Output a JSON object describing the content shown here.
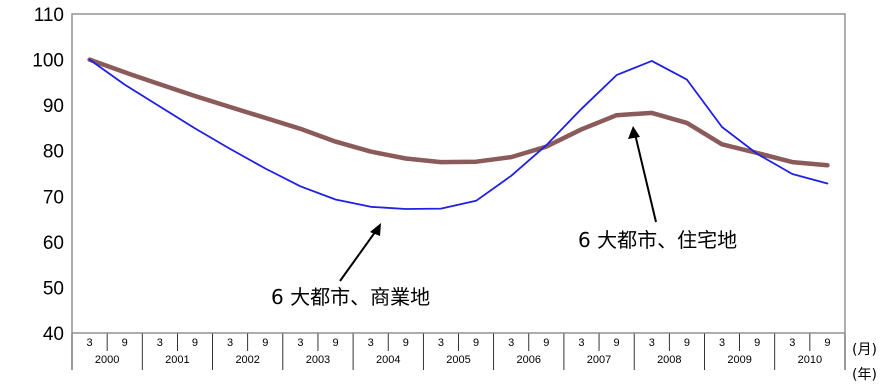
{
  "chart_data": {
    "type": "line",
    "ylim": [
      40,
      110
    ],
    "yticks": [
      "40",
      "50",
      "60",
      "70",
      "80",
      "90",
      "100",
      "110"
    ],
    "month_labels": [
      "3",
      "9"
    ],
    "years": [
      "2000",
      "2001",
      "2002",
      "2003",
      "2004",
      "2005",
      "2006",
      "2007",
      "2008",
      "2009",
      "2010"
    ],
    "unit_month": "(月)",
    "unit_year": "(年)",
    "grid": false,
    "x": [
      "2000-03",
      "2000-09",
      "2001-03",
      "2001-09",
      "2002-03",
      "2002-09",
      "2003-03",
      "2003-09",
      "2004-03",
      "2004-09",
      "2005-03",
      "2005-09",
      "2006-03",
      "2006-09",
      "2007-03",
      "2007-09",
      "2008-03",
      "2008-09",
      "2009-03",
      "2009-09",
      "2010-03",
      "2010-09"
    ],
    "series": [
      {
        "name": "6 大都市、商業地",
        "color": "#1f1fe6",
        "values": [
          100,
          94.5,
          89.7,
          84.9,
          80.4,
          76.1,
          72.2,
          69.3,
          67.7,
          67.2,
          67.3,
          69.0,
          74.5,
          81.2,
          89.2,
          96.6,
          99.7,
          95.6,
          85.2,
          79.3,
          74.9,
          72.8
        ]
      },
      {
        "name": "6 大都市、住宅地",
        "color": "#8b5a5a",
        "values": [
          100,
          97.2,
          94.6,
          92.0,
          89.6,
          87.2,
          84.8,
          82.0,
          79.8,
          78.3,
          77.5,
          77.6,
          78.6,
          80.9,
          84.7,
          87.8,
          88.3,
          86.1,
          81.4,
          79.5,
          77.5,
          76.8
        ]
      }
    ]
  }
}
